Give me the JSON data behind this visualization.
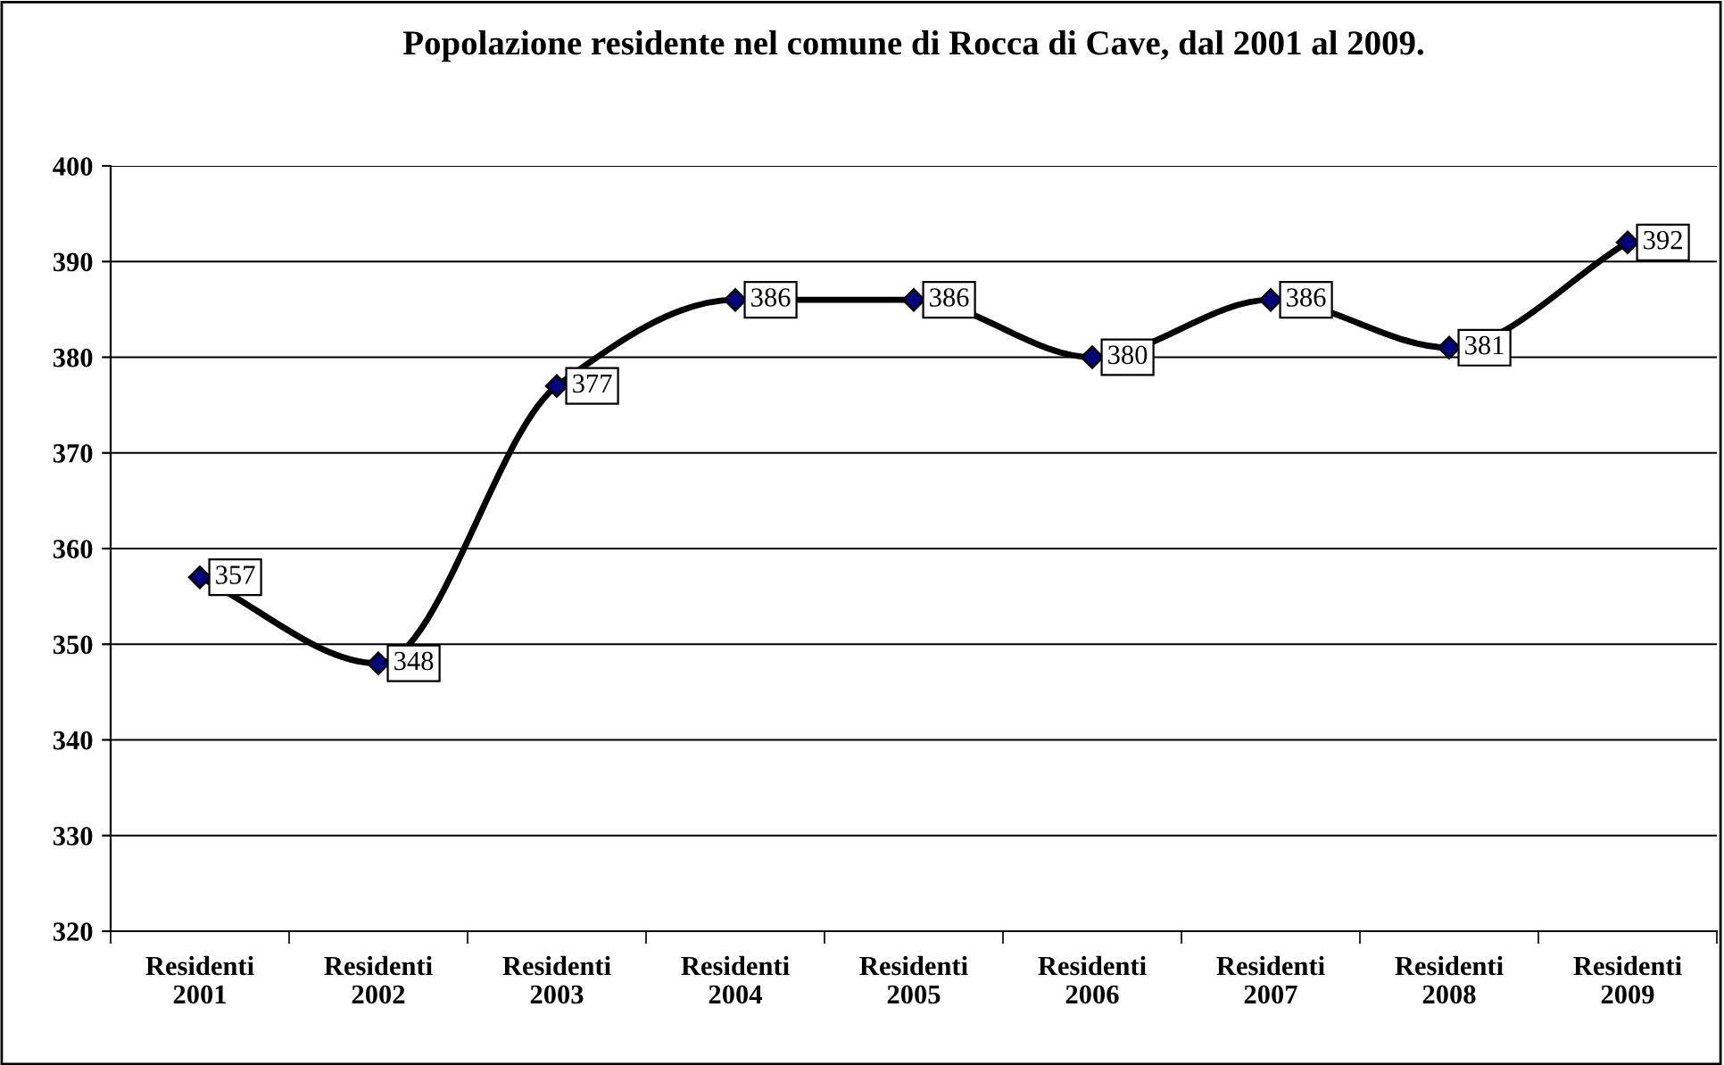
{
  "chart_data": {
    "type": "line",
    "title": "Popolazione residente nel comune di Rocca di Cave, dal 2001 al 2009.",
    "categories": [
      "Residenti\n2001",
      "Residenti\n2002",
      "Residenti\n2003",
      "Residenti\n2004",
      "Residenti\n2005",
      "Residenti\n2006",
      "Residenti\n2007",
      "Residenti\n2008",
      "Residenti\n2009"
    ],
    "series": [
      {
        "color": "#000000",
        "values": [
          357,
          348,
          377,
          386,
          386,
          380,
          386,
          381,
          392
        ]
      }
    ],
    "ylim": [
      320,
      400
    ],
    "yticks": [
      320,
      330,
      340,
      350,
      360,
      370,
      380,
      390,
      400
    ],
    "grid": "y",
    "legend": false,
    "marker": "diamond",
    "line_style": "solid",
    "data_labels": true
  }
}
